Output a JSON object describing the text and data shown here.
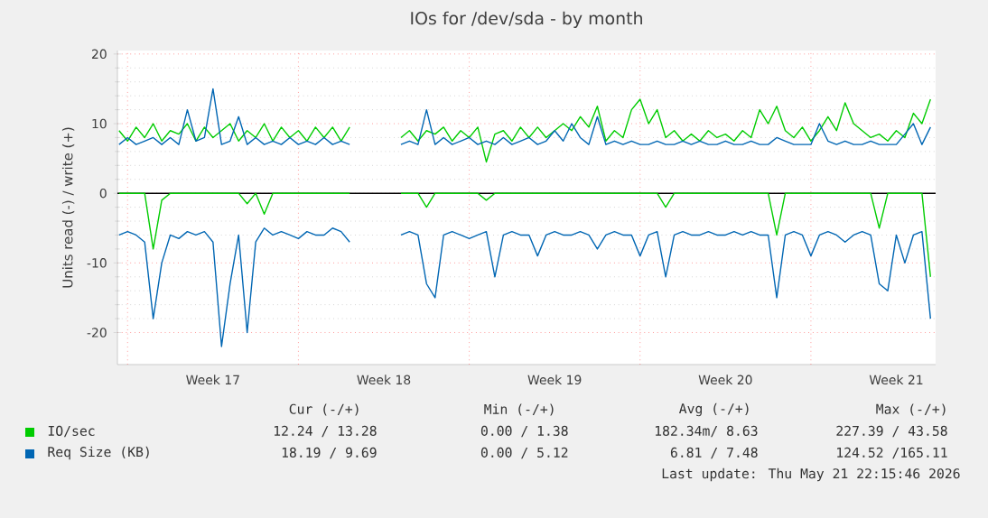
{
  "chart_data": {
    "type": "line",
    "title": "IOs for /dev/sda - by month",
    "ylabel": "Units read (-) / write (+)",
    "x": [
      "2026-04-19T15:36",
      "2026-04-20T00:00",
      "2026-04-20T08:24",
      "2026-04-20T16:48",
      "2026-04-21T01:12",
      "2026-04-21T09:36",
      "2026-04-21T18:00",
      "2026-04-22T02:24",
      "2026-04-22T10:48",
      "2026-04-22T19:12",
      "2026-04-23T03:36",
      "2026-04-23T12:00",
      "2026-04-23T20:24",
      "2026-04-24T04:48",
      "2026-04-24T13:12",
      "2026-04-24T21:36",
      "2026-04-25T06:00",
      "2026-04-25T14:24",
      "2026-04-25T22:48",
      "2026-04-26T07:12",
      "2026-04-26T15:36",
      "2026-04-27T00:00",
      "2026-04-27T08:24",
      "2026-04-27T16:48",
      "2026-04-28T01:12",
      "2026-04-28T09:36",
      "2026-04-28T18:00",
      "2026-04-29T02:24",
      "2026-04-30T03:36",
      "2026-05-01T04:48",
      "2026-05-01T13:12",
      "2026-05-01T21:36",
      "2026-05-02T06:00",
      "2026-05-02T14:24",
      "2026-05-02T22:48",
      "2026-05-03T07:12",
      "2026-05-03T15:36",
      "2026-05-04T00:00",
      "2026-05-04T08:24",
      "2026-05-04T16:48",
      "2026-05-05T01:12",
      "2026-05-05T09:36",
      "2026-05-05T18:00",
      "2026-05-06T02:24",
      "2026-05-06T10:48",
      "2026-05-06T19:12",
      "2026-05-07T03:36",
      "2026-05-07T12:00",
      "2026-05-07T20:24",
      "2026-05-08T04:48",
      "2026-05-08T13:12",
      "2026-05-08T21:36",
      "2026-05-09T06:00",
      "2026-05-09T14:24",
      "2026-05-09T22:48",
      "2026-05-10T07:12",
      "2026-05-10T15:36",
      "2026-05-11T00:00",
      "2026-05-11T08:24",
      "2026-05-11T16:48",
      "2026-05-12T01:12",
      "2026-05-12T09:36",
      "2026-05-12T18:00",
      "2026-05-13T02:24",
      "2026-05-13T10:48",
      "2026-05-13T19:12",
      "2026-05-14T03:36",
      "2026-05-14T12:00",
      "2026-05-14T20:24",
      "2026-05-15T04:48",
      "2026-05-15T13:12",
      "2026-05-15T21:36",
      "2026-05-16T06:00",
      "2026-05-16T14:24",
      "2026-05-16T22:48",
      "2026-05-17T07:12",
      "2026-05-17T15:36",
      "2026-05-18T00:00",
      "2026-05-18T08:24",
      "2026-05-18T16:48",
      "2026-05-19T01:12",
      "2026-05-19T09:36",
      "2026-05-19T18:00",
      "2026-05-20T02:24",
      "2026-05-20T10:48",
      "2026-05-20T19:12",
      "2026-05-21T03:36",
      "2026-05-21T12:00",
      "2026-05-21T20:24",
      "2026-05-22T04:48",
      "2026-05-22T13:12",
      "2026-05-22T21:36"
    ],
    "series": [
      {
        "color": "#00cc00",
        "values": [
          0,
          0,
          0,
          0,
          -8,
          -1,
          0,
          0,
          0,
          0,
          0,
          0,
          0,
          0,
          0,
          -1.5,
          0,
          -3,
          0,
          0,
          0,
          0,
          0,
          0,
          0,
          0,
          0,
          0,
          null,
          0,
          0,
          0,
          -2,
          0,
          0,
          0,
          0,
          0,
          0,
          -1,
          0,
          0,
          0,
          0,
          0,
          0,
          0,
          0,
          0,
          0,
          0,
          0,
          0,
          0,
          0,
          0,
          0,
          0,
          0,
          0,
          -2,
          0,
          0,
          0,
          0,
          0,
          0,
          0,
          0,
          0,
          0,
          0,
          0,
          -6,
          0,
          0,
          0,
          0,
          0,
          0,
          0,
          0,
          0,
          0,
          0,
          -5,
          0,
          0,
          0,
          0,
          0,
          -12
        ]
      },
      {
        "name": "IO/sec",
        "color": "#00cc00",
        "values": [
          9,
          7.5,
          9.5,
          8,
          10,
          7.5,
          9,
          8.5,
          10,
          7.5,
          9.5,
          8,
          9,
          10,
          7.5,
          9,
          8,
          10,
          7.5,
          9.5,
          8,
          9,
          7.5,
          9.5,
          8,
          9.5,
          7.5,
          9.5,
          null,
          8,
          9,
          7.5,
          9,
          8.5,
          9.5,
          7.5,
          9,
          8,
          9.5,
          4.5,
          8.5,
          9,
          7.5,
          9.5,
          8,
          9.5,
          8,
          9,
          10,
          9,
          11,
          9.5,
          12.5,
          7.5,
          9,
          8,
          12,
          13.5,
          10,
          12,
          8,
          9,
          7.5,
          8.5,
          7.5,
          9,
          8,
          8.5,
          7.5,
          9,
          8,
          12,
          10,
          12.5,
          9,
          8,
          9.5,
          7.5,
          9,
          11,
          9,
          13,
          10,
          9,
          8,
          8.5,
          7.5,
          9,
          8,
          11.5,
          10,
          13.5
        ]
      },
      {
        "color": "#0066b3",
        "values": [
          -6,
          -5.5,
          -6,
          -7,
          -18,
          -10,
          -6,
          -6.5,
          -5.5,
          -6,
          -5.5,
          -7,
          -22,
          -13,
          -6,
          -20,
          -7,
          -5,
          -6,
          -5.5,
          -6,
          -6.5,
          -5.5,
          -6,
          -6,
          -5,
          -5.5,
          -7,
          null,
          -6,
          -5.5,
          -6,
          -13,
          -15,
          -6,
          -5.5,
          -6,
          -6.5,
          -6,
          -5.5,
          -12,
          -6,
          -5.5,
          -6,
          -6,
          -9,
          -6,
          -5.5,
          -6,
          -6,
          -5.5,
          -6,
          -8,
          -6,
          -5.5,
          -6,
          -6,
          -9,
          -6,
          -5.5,
          -12,
          -6,
          -5.5,
          -6,
          -6,
          -5.5,
          -6,
          -6,
          -5.5,
          -6,
          -5.5,
          -6,
          -6,
          -15,
          -6,
          -5.5,
          -6,
          -9,
          -6,
          -5.5,
          -6,
          -7,
          -6,
          -5.5,
          -6,
          -13,
          -14,
          -6,
          -10,
          -6,
          -5.5,
          -18
        ]
      },
      {
        "name": "Req Size (KB)",
        "color": "#0066b3",
        "values": [
          7,
          8,
          7,
          7.5,
          8,
          7,
          8,
          7,
          12,
          7.5,
          8,
          15,
          7,
          7.5,
          11,
          7,
          8,
          7,
          7.5,
          7,
          8,
          7,
          7.5,
          7,
          8,
          7,
          7.5,
          7,
          null,
          7,
          7.5,
          7,
          12,
          7,
          8,
          7,
          7.5,
          8,
          7,
          7.5,
          7,
          8,
          7,
          7.5,
          8,
          7,
          7.5,
          9,
          7.5,
          10,
          8,
          7,
          11,
          7,
          7.5,
          7,
          7.5,
          7,
          7,
          7.5,
          7,
          7,
          7.5,
          7,
          7.5,
          7,
          7,
          7.5,
          7,
          7,
          7.5,
          7,
          7,
          8,
          7.5,
          7,
          7,
          7,
          10,
          7.5,
          7,
          7.5,
          7,
          7,
          7.5,
          7,
          7,
          7,
          8.5,
          10,
          7,
          9.5
        ]
      }
    ],
    "xlim": [
      "2026-04-19T14:00",
      "2026-05-23T02:40"
    ],
    "xticks": [
      {
        "value": "2026-04-20",
        "label": null
      },
      {
        "value": "2026-04-23T12:00",
        "label": "Week 17"
      },
      {
        "value": "2026-04-27",
        "label": null
      },
      {
        "value": "2026-04-30T12:00",
        "label": "Week 18"
      },
      {
        "value": "2026-05-04",
        "label": null
      },
      {
        "value": "2026-05-07T12:00",
        "label": "Week 19"
      },
      {
        "value": "2026-05-11",
        "label": null
      },
      {
        "value": "2026-05-14T12:00",
        "label": "Week 20"
      },
      {
        "value": "2026-05-18",
        "label": null
      },
      {
        "value": "2026-05-21T12:00",
        "label": "Week 21"
      }
    ],
    "ylim": [
      -24.6,
      20.5
    ],
    "yticks": [
      -20,
      -10,
      0,
      10,
      20
    ],
    "ref_lines": [
      {
        "axis": "y",
        "value": 0,
        "color": "#000000"
      }
    ],
    "grid": true,
    "legend": "bottom",
    "annotations": [
      "Cur (-/+)",
      "Min (-/+)",
      "Avg (-/+)",
      "Max (-/+)",
      "12.24 / 13.28",
      "0.00 /  1.38",
      "182.34m/  8.63",
      "227.39 / 43.58",
      "18.19 /  9.69",
      "0.00 /  5.12",
      "6.81 /  7.48",
      "124.52 /165.11",
      "Last update: Thu May 21 22:15:46 2026"
    ]
  }
}
